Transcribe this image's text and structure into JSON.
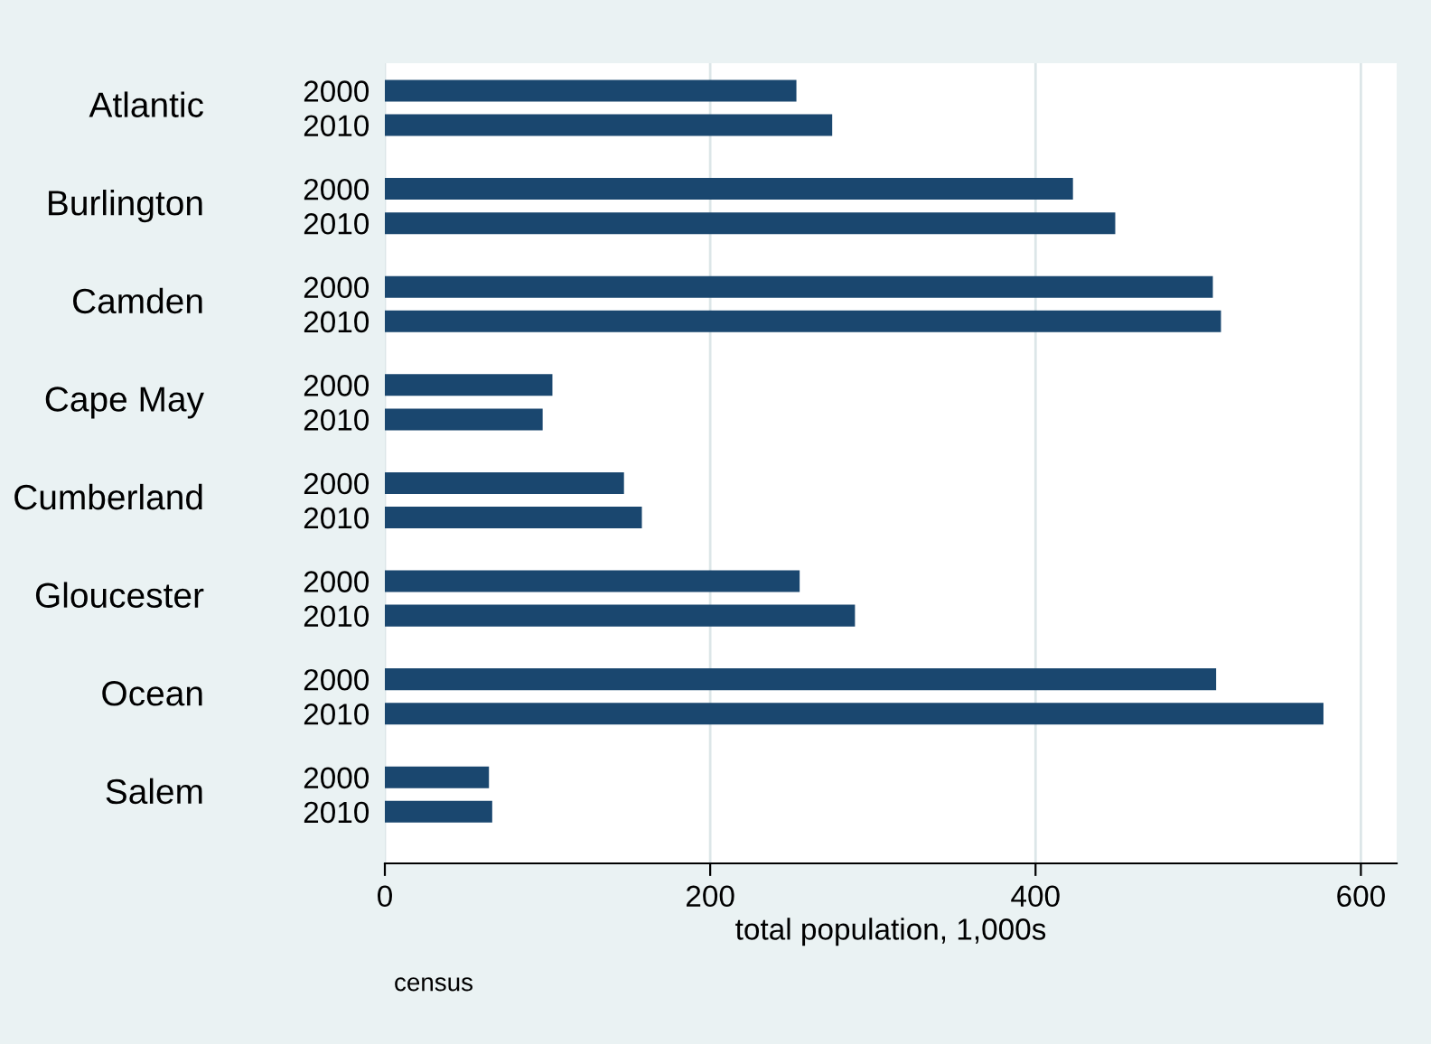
{
  "chart_data": {
    "type": "bar",
    "orientation": "horizontal",
    "xlabel": "total population, 1,000s",
    "categories": [
      "2000",
      "2010",
      "2000",
      "2010",
      "2000",
      "2010",
      "2000",
      "2010",
      "2000",
      "2010",
      "2000",
      "2010",
      "2000",
      "2010",
      "2000",
      "2010"
    ],
    "values": [
      253,
      275,
      423,
      449,
      509,
      514,
      103,
      97,
      147,
      158,
      255,
      289,
      511,
      577,
      64,
      66
    ],
    "color": "#1a476f",
    "xlim": [
      0,
      622
    ],
    "xticks": [
      0,
      200,
      400,
      600
    ],
    "grid": "x",
    "annotations": [
      "Atlantic",
      "Burlington",
      "Camden",
      "Cape May",
      "Cumberland",
      "Gloucester",
      "Ocean",
      "Salem",
      "census"
    ]
  }
}
